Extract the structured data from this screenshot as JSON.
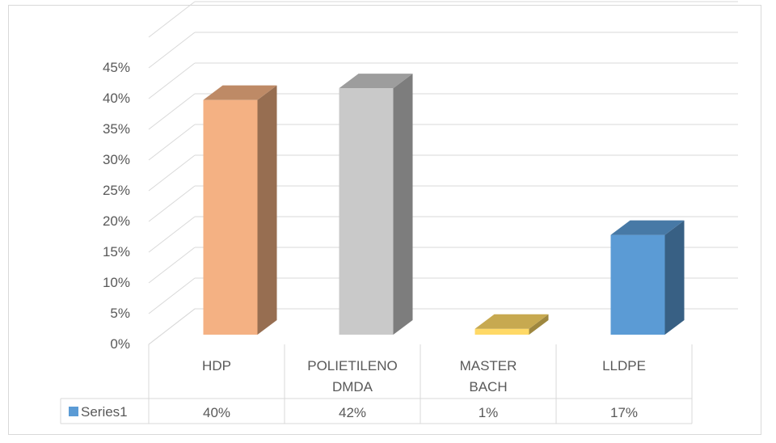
{
  "chart_data": {
    "type": "bar",
    "style": "3d-column",
    "categories": [
      "HDP",
      "POLIETILENO DMDA",
      "MASTER BACH",
      "LLDPE"
    ],
    "category_lines": [
      [
        "HDP"
      ],
      [
        "POLIETILENO",
        "DMDA"
      ],
      [
        "MASTER",
        "BACH"
      ],
      [
        "LLDPE"
      ]
    ],
    "series": [
      {
        "name": "Series1",
        "values": [
          0.4,
          0.42,
          0.01,
          0.17
        ],
        "labels": [
          "40%",
          "42%",
          "1%",
          "17%"
        ],
        "color": "#5b9bd5"
      }
    ],
    "point_colors": [
      "#f4b183",
      "#c9c9c9",
      "#ffd966",
      "#5b9bd5"
    ],
    "ylim": [
      0,
      0.45
    ],
    "yticks": [
      0,
      0.05,
      0.1,
      0.15,
      0.2,
      0.25,
      0.3,
      0.35,
      0.4,
      0.45
    ],
    "ytick_labels": [
      "0%",
      "5%",
      "10%",
      "15%",
      "20%",
      "25%",
      "30%",
      "35%",
      "40%",
      "45%"
    ],
    "grid": true,
    "data_table": true,
    "legend": "data-table"
  }
}
